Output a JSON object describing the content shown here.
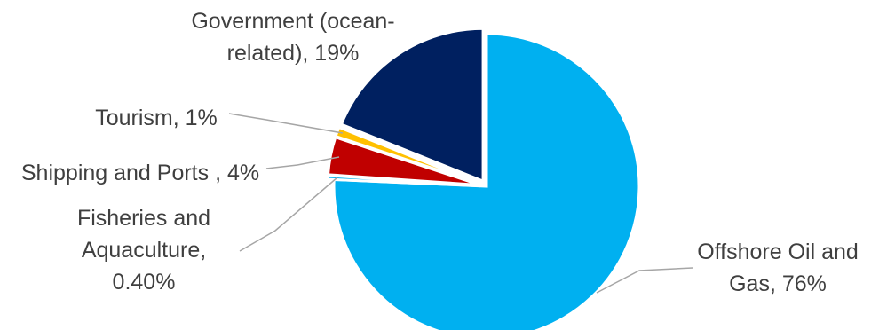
{
  "chart_data": {
    "type": "pie",
    "start_angle_deg": 0,
    "direction": "clockwise",
    "slices": [
      {
        "label": "Offshore Oil and Gas",
        "value": 76,
        "display": "76%",
        "color": "#00b0f0",
        "label_lines": [
          "Offshore Oil and",
          "Gas, 76%"
        ]
      },
      {
        "label": "Fisheries and Aquaculture",
        "value": 0.4,
        "display": "0.40%",
        "color": "#00b0f0",
        "label_lines": [
          "Fisheries and",
          "Aquaculture,",
          "0.40%"
        ]
      },
      {
        "label": "Shipping and Ports",
        "value": 4,
        "display": "4%",
        "color": "#c00000",
        "label_lines": [
          "Shipping and Ports , 4%"
        ]
      },
      {
        "label": "Tourism",
        "value": 1,
        "display": "1%",
        "color": "#ffc000",
        "label_lines": [
          "Tourism, 1%"
        ]
      },
      {
        "label": "Government (ocean-related)",
        "value": 19,
        "display": "19%",
        "color": "#002060",
        "label_lines": [
          "Government (ocean-",
          "related), 19%"
        ]
      }
    ]
  }
}
